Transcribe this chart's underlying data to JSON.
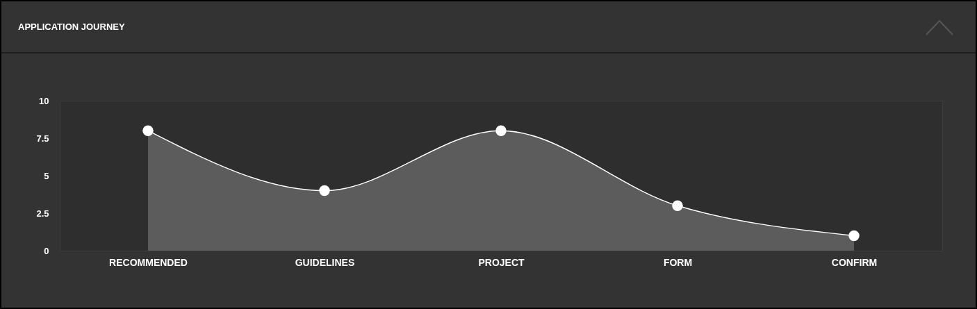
{
  "chart_data": {
    "type": "area",
    "title": "APPLICATION JOURNEY",
    "categories": [
      "RECOMMENDED",
      "GUIDELINES",
      "PROJECT",
      "FORM",
      "CONFIRM"
    ],
    "series": [
      {
        "color": "#5c5c5c",
        "values": [
          8,
          4,
          8,
          3,
          1
        ]
      }
    ],
    "ylim": [
      0,
      10
    ],
    "yticks": [
      0,
      2.5,
      5,
      7.5,
      10
    ],
    "marker": "circle",
    "line_style": "solid"
  }
}
